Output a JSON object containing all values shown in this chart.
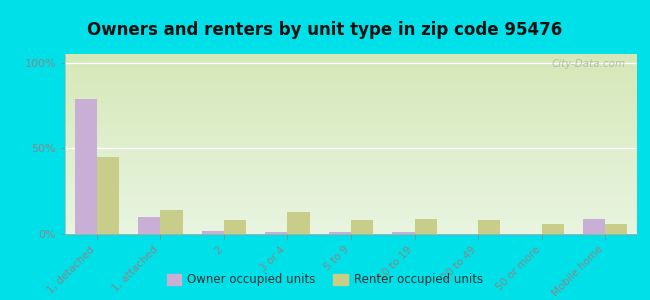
{
  "title": "Owners and renters by unit type in zip code 95476",
  "categories": [
    "1, detached",
    "1, attached",
    "2",
    "3 or 4",
    "5 to 9",
    "10 to 19",
    "20 to 49",
    "50 or more",
    "Mobile home"
  ],
  "owner_values": [
    79,
    10,
    2,
    1,
    1,
    1,
    0,
    0,
    9
  ],
  "renter_values": [
    45,
    14,
    8,
    13,
    8,
    9,
    8,
    6,
    6
  ],
  "owner_color": "#c9aed6",
  "renter_color": "#c8cd8a",
  "bg_outer": "#00e0e8",
  "title_fontsize": 12,
  "ylabel_ticks": [
    "0%",
    "50%",
    "100%"
  ],
  "ytick_vals": [
    0,
    50,
    100
  ],
  "ylim": [
    0,
    105
  ],
  "bar_width": 0.35,
  "watermark": "City-Data.com",
  "legend_label_owner": "Owner occupied units",
  "legend_label_renter": "Renter occupied units",
  "grid_color": "#c8d8aa",
  "spine_color": "#aaaaaa"
}
